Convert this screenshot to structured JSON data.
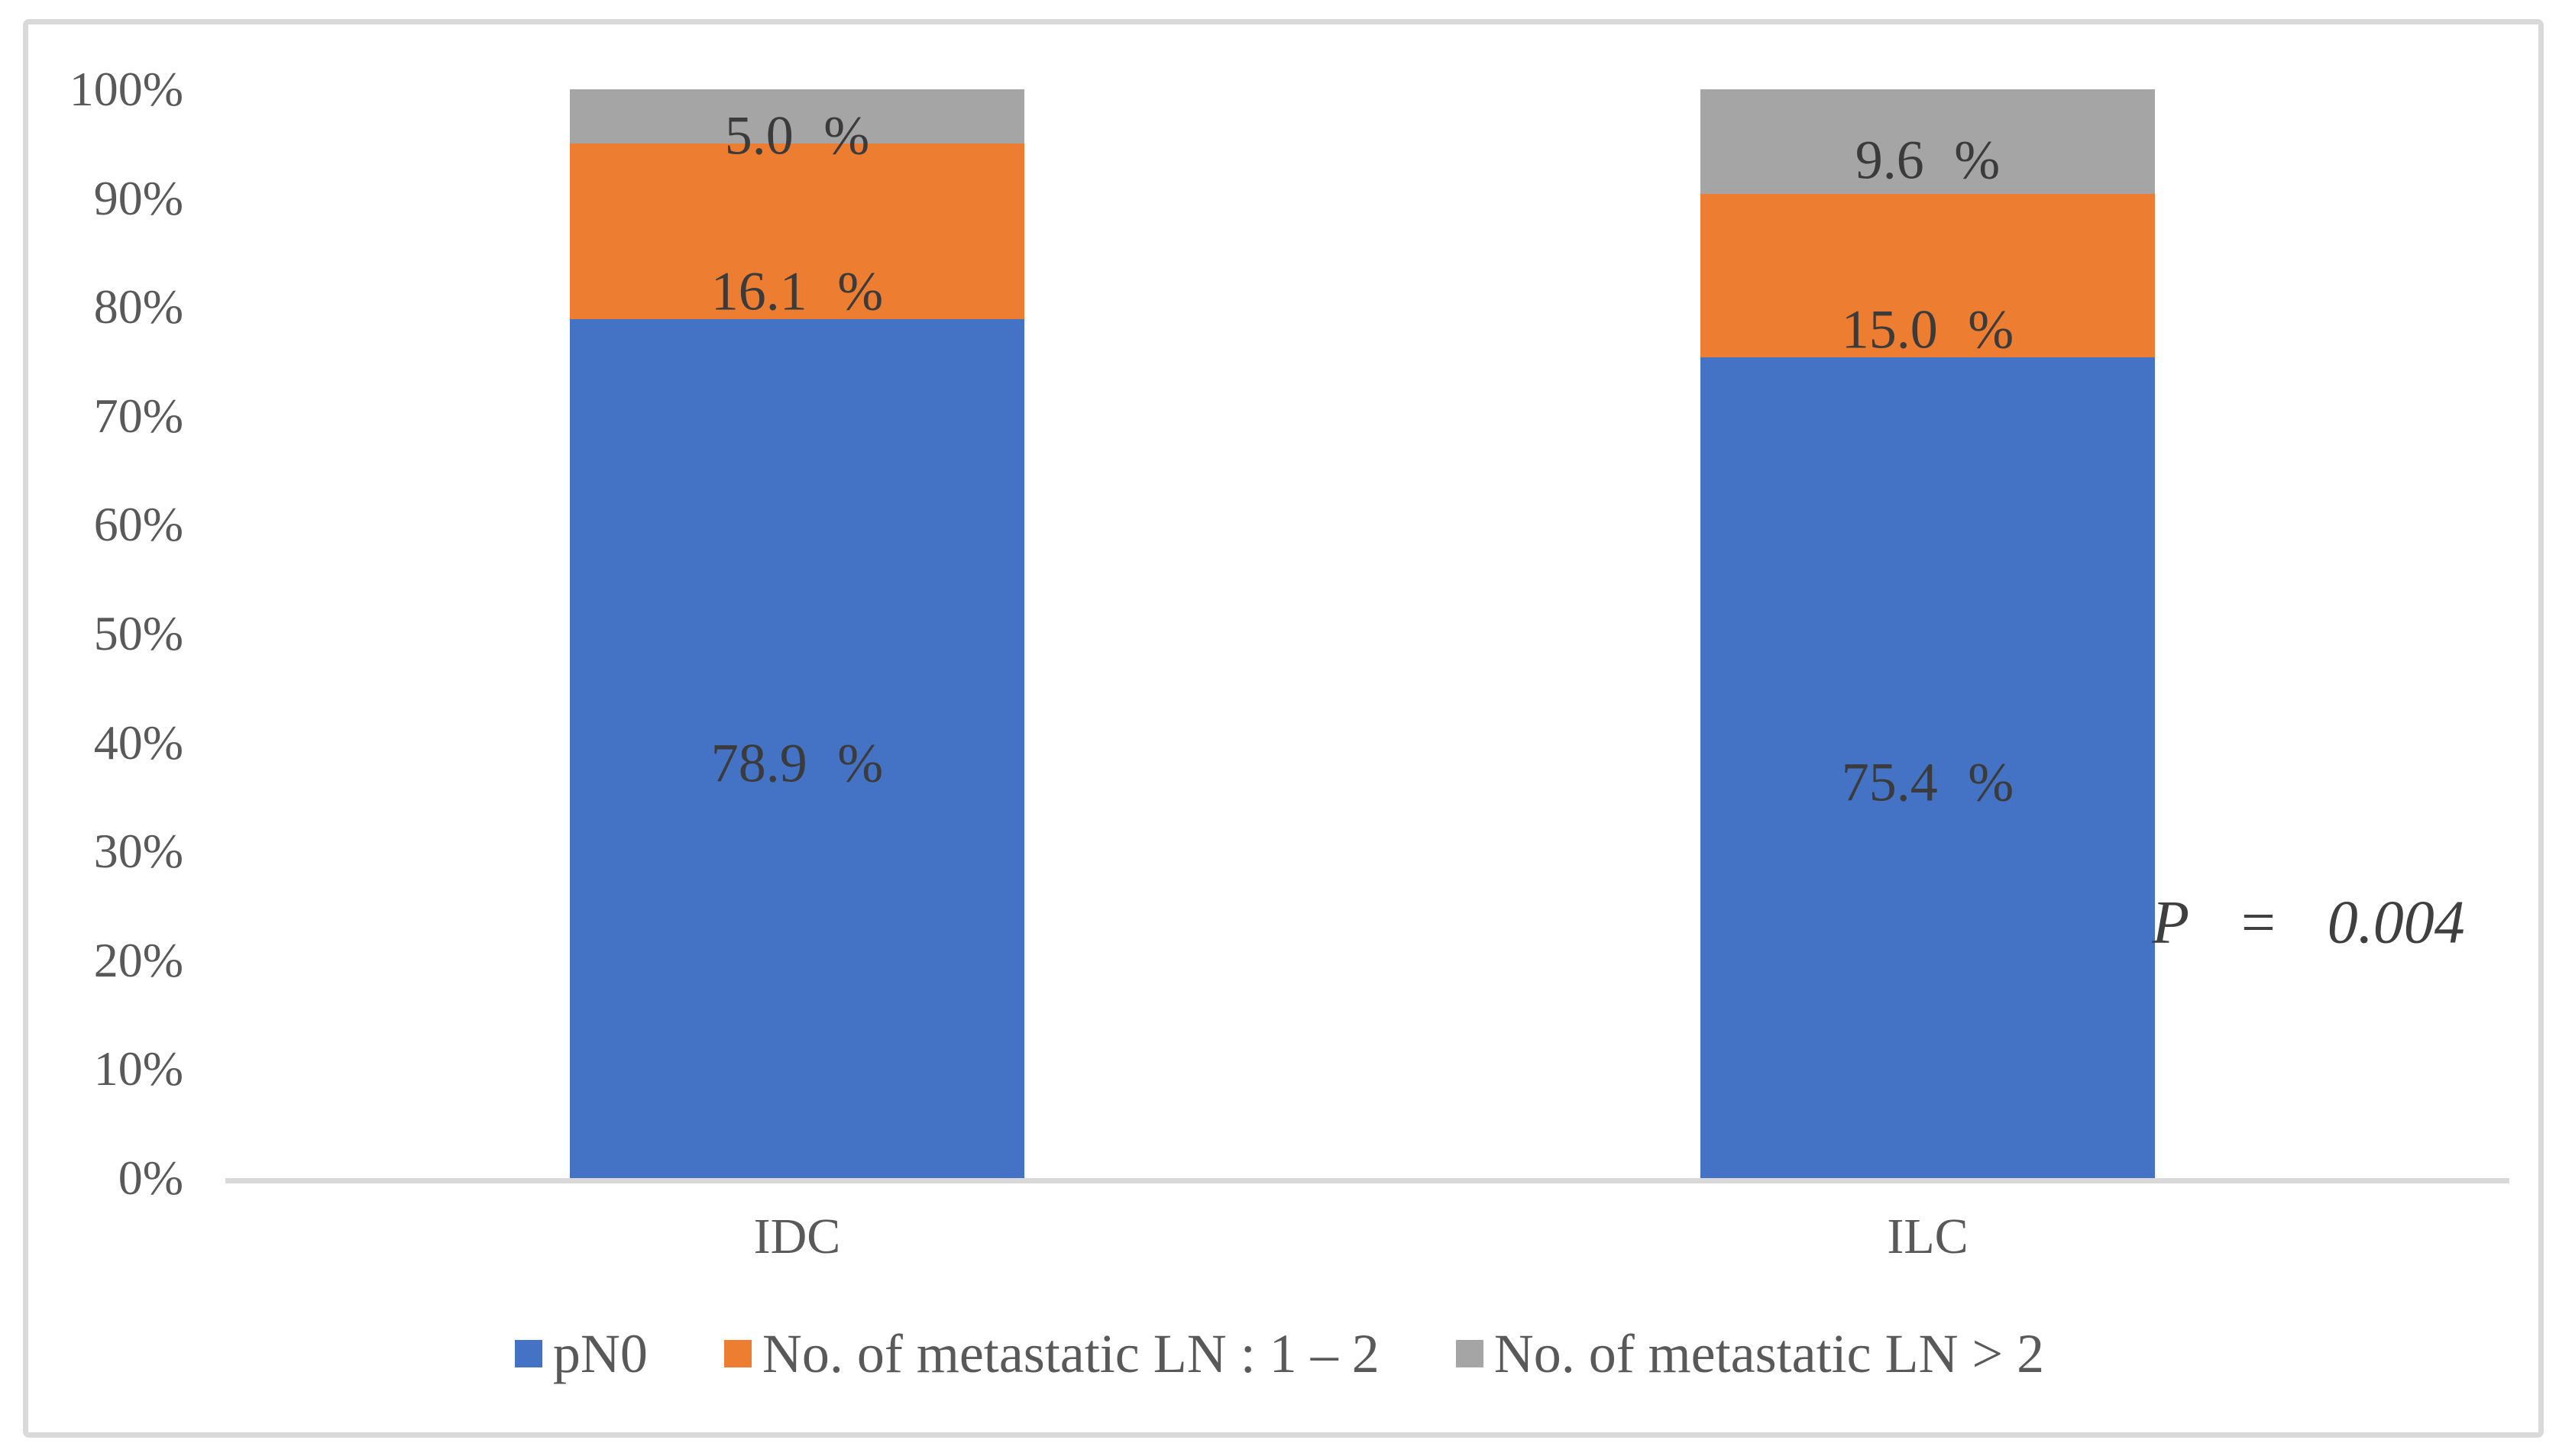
{
  "chart_data": {
    "type": "bar",
    "stacked": true,
    "percent_stacked": true,
    "title": "",
    "xlabel": "",
    "ylabel": "",
    "categories": [
      "IDC",
      "ILC"
    ],
    "series": [
      {
        "name": "pN0",
        "color": "#4472C4",
        "values": [
          78.9,
          75.4
        ]
      },
      {
        "name": "No. of metastatic LN : 1 – 2",
        "color": "#ED7D31",
        "values": [
          16.1,
          15.0
        ]
      },
      {
        "name": "No. of metastatic LN > 2",
        "color": "#A5A5A5",
        "values": [
          5.0,
          9.6
        ]
      }
    ],
    "value_labels": [
      [
        "78.9 %",
        "16.1 %",
        "5.0 %"
      ],
      [
        "75.4 %",
        "15.0 %",
        "9.6 %"
      ]
    ],
    "y_ticks": [
      "100%",
      "90%",
      "80%",
      "70%",
      "60%",
      "50%",
      "40%",
      "30%",
      "20%",
      "10%",
      "0%"
    ],
    "ylim": [
      0,
      100
    ],
    "grid": false,
    "legend_position": "bottom",
    "annotation": "P = 0.004"
  },
  "colors": {
    "axis_line": "#D9D9D9",
    "frame_border": "#D9D9D9",
    "tick_text": "#595959",
    "category_text": "#595959",
    "data_label_text": "#3B3B3B",
    "legend_text": "#595959",
    "annotation_text": "#3F3F3F",
    "background": "#FFFFFF"
  }
}
